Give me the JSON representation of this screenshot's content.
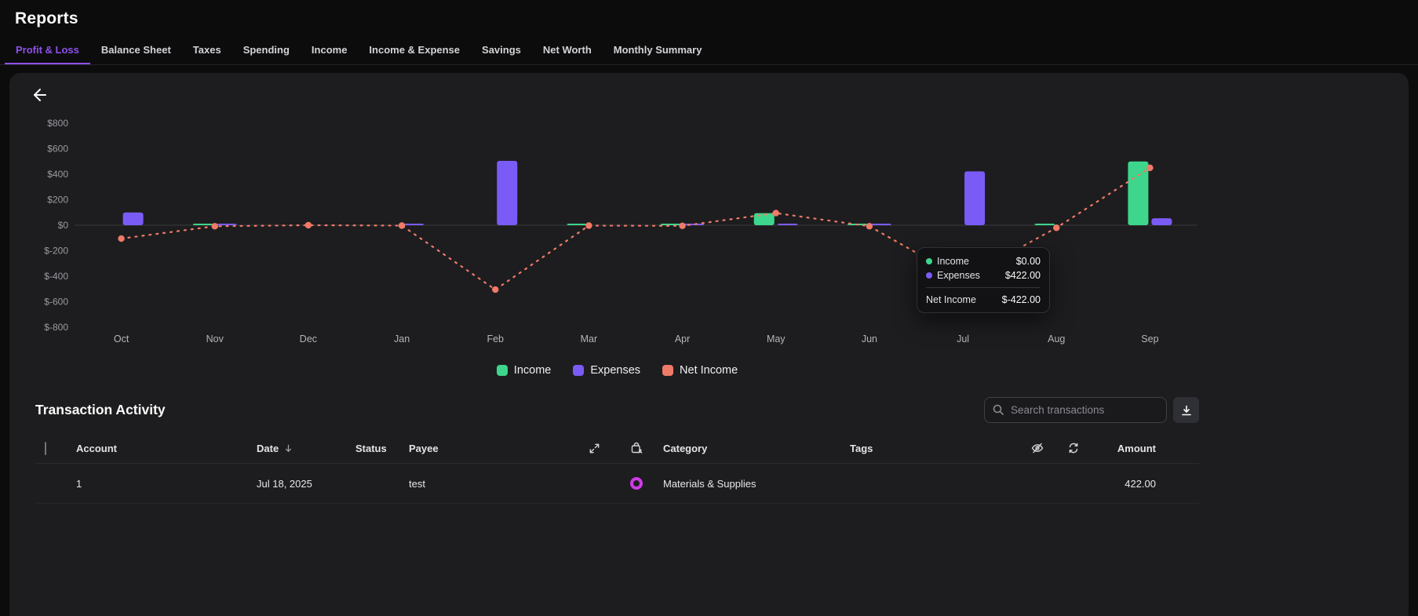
{
  "colors": {
    "accent": "#8e51ea",
    "income": "#3dd68c",
    "expenses": "#7b5bf5",
    "net_income": "#f07a68",
    "row_marker": "#cf3bea"
  },
  "header": {
    "title": "Reports"
  },
  "tabs": [
    {
      "label": "Profit & Loss",
      "active": true
    },
    {
      "label": "Balance Sheet",
      "active": false
    },
    {
      "label": "Taxes",
      "active": false
    },
    {
      "label": "Spending",
      "active": false
    },
    {
      "label": "Income",
      "active": false
    },
    {
      "label": "Income & Expense",
      "active": false
    },
    {
      "label": "Savings",
      "active": false
    },
    {
      "label": "Net Worth",
      "active": false
    },
    {
      "label": "Monthly Summary",
      "active": false
    }
  ],
  "chart_data": {
    "type": "bar",
    "subtype": "grouped income/expense bars with dashed net-income line",
    "categories": [
      "Oct",
      "Nov",
      "Dec",
      "Jan",
      "Feb",
      "Mar",
      "Apr",
      "May",
      "Jun",
      "Jul",
      "Aug",
      "Sep"
    ],
    "series": [
      {
        "name": "Income",
        "kind": "bar",
        "color": "#3dd68c",
        "values": [
          0,
          5,
          0,
          0,
          0,
          10,
          5,
          95,
          5,
          0,
          5,
          500
        ]
      },
      {
        "name": "Expenses",
        "kind": "bar",
        "color": "#7b5bf5",
        "values": [
          100,
          10,
          0,
          8,
          505,
          0,
          8,
          12,
          8,
          422,
          0,
          55
        ]
      },
      {
        "name": "Net Income",
        "kind": "line",
        "color": "#f07a68",
        "values": [
          -105,
          -8,
          0,
          -3,
          -505,
          -3,
          -5,
          95,
          -8,
          -422,
          -20,
          450
        ]
      }
    ],
    "ylim": [
      -800,
      800
    ],
    "ytick_step": 200,
    "ytick_labels": [
      "$800",
      "$600",
      "$400",
      "$200",
      "$0",
      "$-200",
      "$-400",
      "$-600",
      "$-800"
    ],
    "grid": false,
    "legend_position": "bottom"
  },
  "tooltip": {
    "series_rows": [
      {
        "label": "Income",
        "value": "$0.00",
        "color": "#3dd68c"
      },
      {
        "label": "Expenses",
        "value": "$422.00",
        "color": "#7b5bf5"
      }
    ],
    "net": {
      "label": "Net Income",
      "value": "$-422.00"
    }
  },
  "transactions": {
    "title": "Transaction Activity",
    "search_placeholder": "Search transactions",
    "columns": {
      "account": "Account",
      "date": "Date",
      "status": "Status",
      "payee": "Payee",
      "category": "Category",
      "tags": "Tags",
      "amount": "Amount"
    },
    "rows": [
      {
        "account": "1",
        "date": "Jul 18, 2025",
        "status": "",
        "payee": "test",
        "category": "Materials & Supplies",
        "tags": "",
        "amount": "422.00",
        "marker": true
      }
    ]
  }
}
